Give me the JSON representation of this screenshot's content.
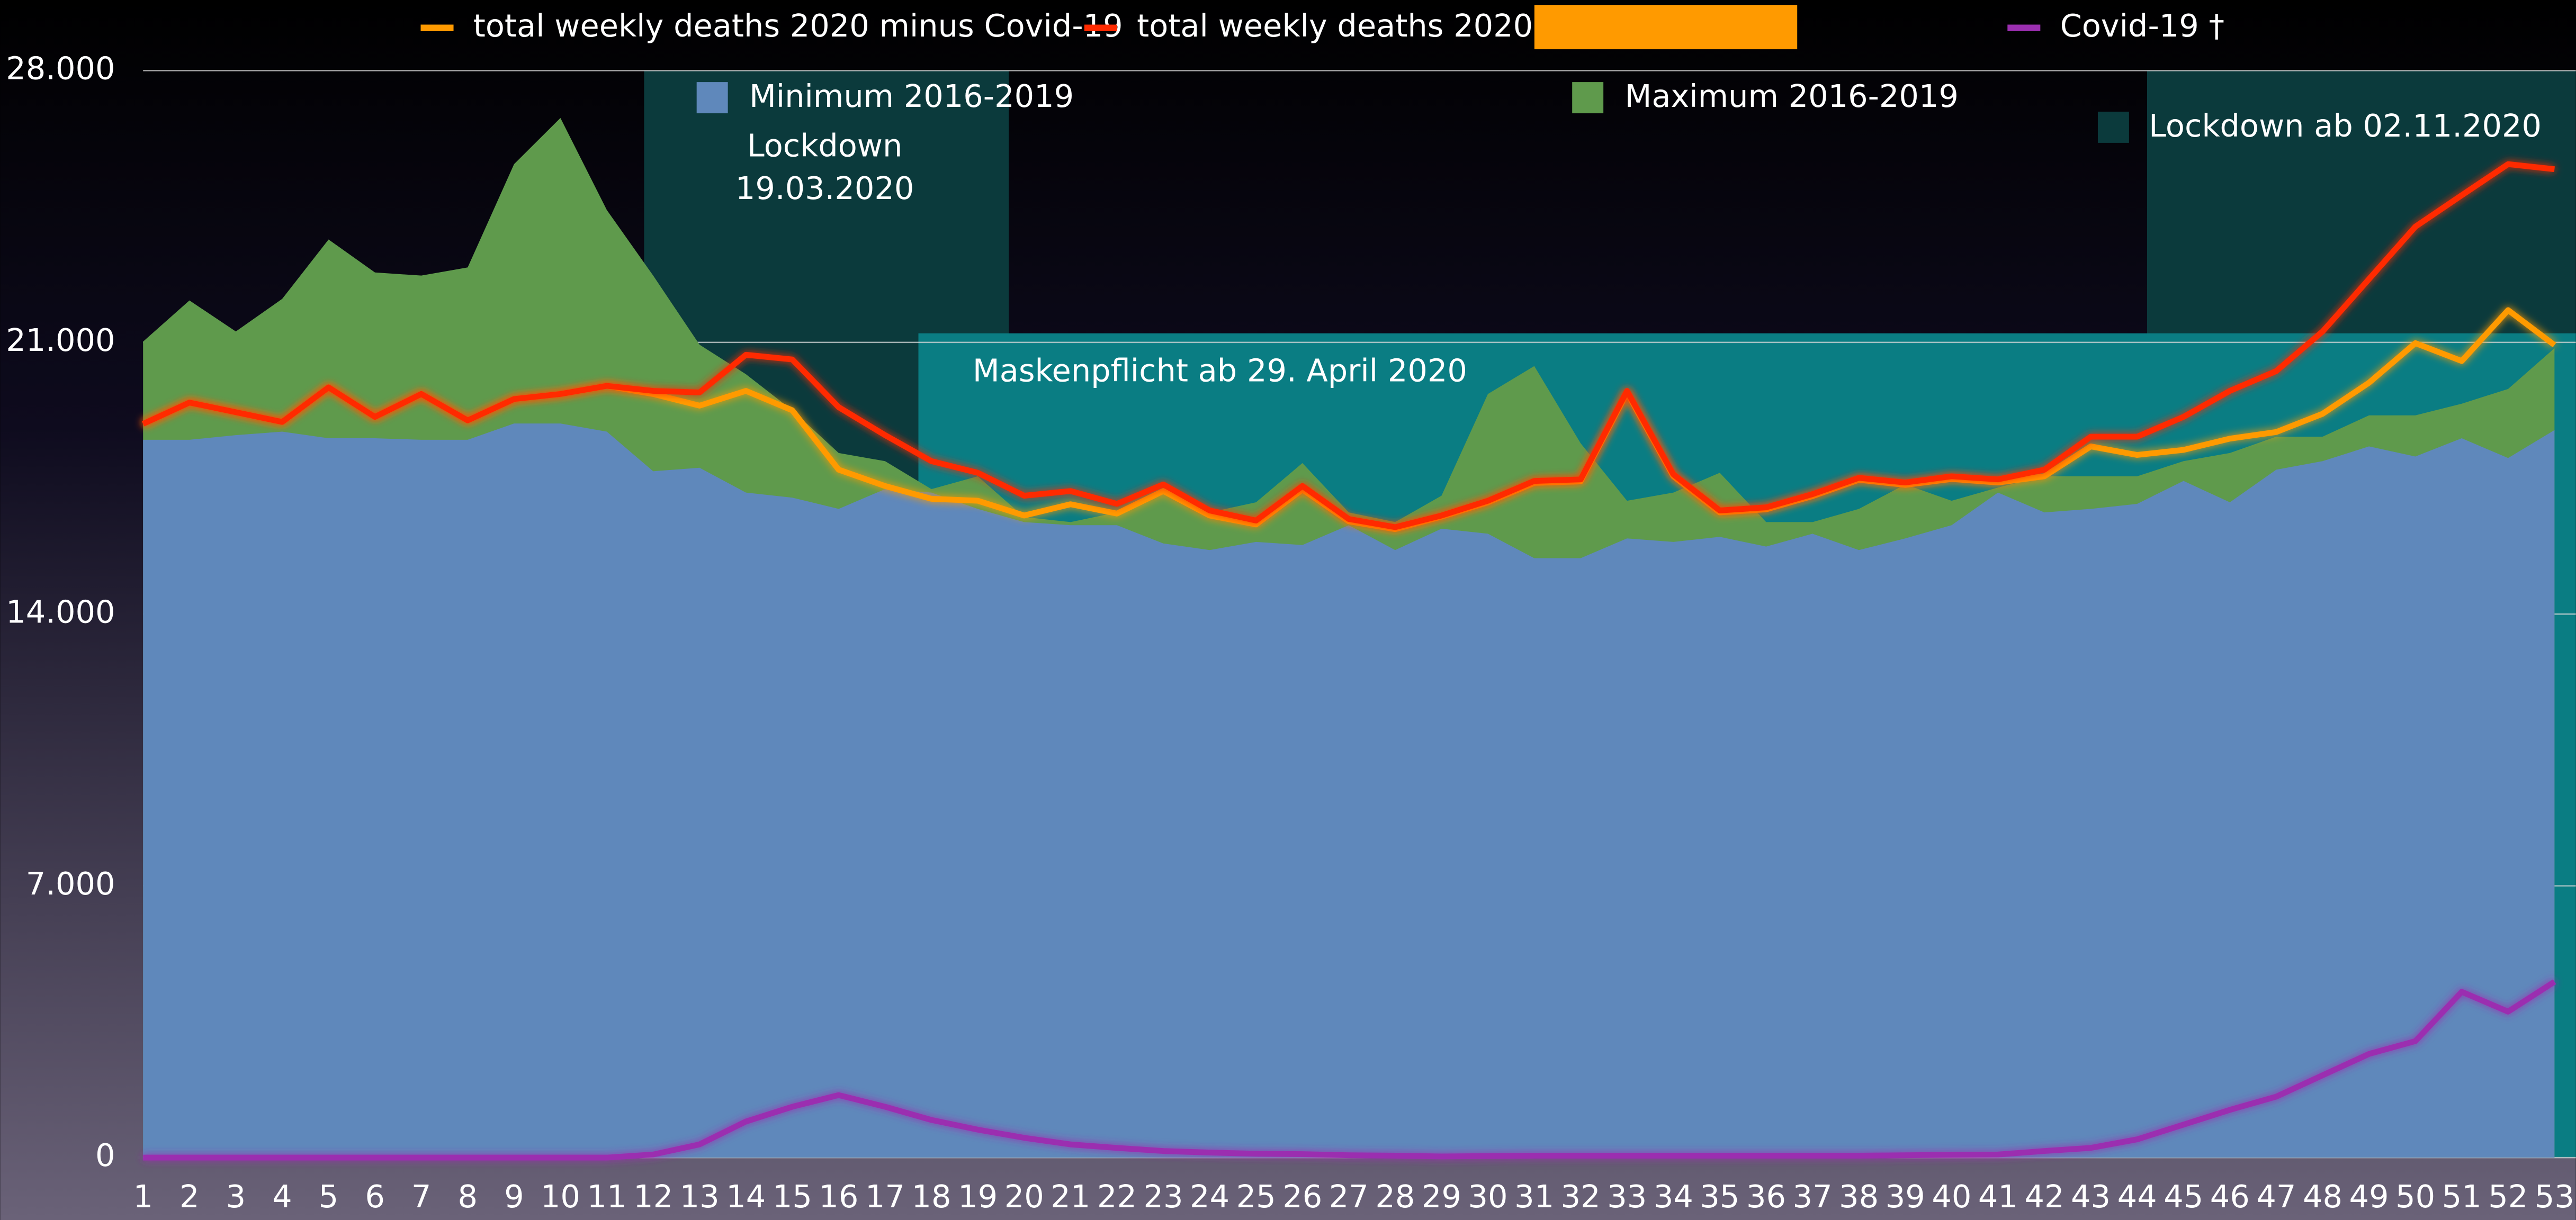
{
  "chart_data": {
    "type": "line",
    "categories": [
      "1",
      "2",
      "3",
      "4",
      "5",
      "6",
      "7",
      "8",
      "9",
      "10",
      "11",
      "12",
      "13",
      "14",
      "15",
      "16",
      "17",
      "18",
      "19",
      "20",
      "21",
      "22",
      "23",
      "24",
      "25",
      "26",
      "27",
      "28",
      "29",
      "30",
      "31",
      "32",
      "33",
      "34",
      "35",
      "36",
      "37",
      "38",
      "39",
      "40",
      "41",
      "42",
      "43",
      "44",
      "45",
      "46",
      "47",
      "48",
      "49",
      "50",
      "51",
      "52",
      "53"
    ],
    "ylim": [
      0,
      28000
    ],
    "yticks": [
      0,
      {
        "value": 7000,
        "label": "7.000"
      },
      {
        "value": 14000,
        "label": "14.000"
      },
      {
        "value": 21000,
        "label": "21.000"
      },
      {
        "value": 28000,
        "label": "28.000"
      }
    ],
    "grid": true,
    "legend": "top",
    "series": [
      {
        "name": "Maximum 2016-2019",
        "type": "area",
        "color": "#5f9a4c",
        "values": [
          21020,
          22080,
          21280,
          22120,
          23650,
          22800,
          22720,
          22930,
          25590,
          26780,
          24410,
          22720,
          20940,
          20180,
          19250,
          18150,
          17940,
          17220,
          17550,
          16500,
          16370,
          16620,
          17130,
          16620,
          16880,
          17890,
          16620,
          16370,
          17050,
          19670,
          20390,
          18400,
          16920,
          17130,
          17640,
          16370,
          16370,
          16710,
          17340,
          16920,
          17260,
          17550,
          17550,
          17550,
          17940,
          18150,
          18570,
          18570,
          19120,
          19120,
          19420,
          19800,
          20850
        ]
      },
      {
        "name": "Minimum 2016-2019",
        "type": "area",
        "color": "#5f88bb",
        "values": [
          18490,
          18490,
          18610,
          18700,
          18530,
          18530,
          18490,
          18490,
          18910,
          18910,
          18700,
          17680,
          17770,
          17130,
          17000,
          16710,
          17220,
          17130,
          16710,
          16370,
          16290,
          16290,
          15820,
          15650,
          15860,
          15780,
          16290,
          15650,
          16200,
          16070,
          15440,
          15440,
          15950,
          15860,
          15990,
          15740,
          16070,
          15650,
          15950,
          16290,
          17130,
          16620,
          16710,
          16840,
          17430,
          16880,
          17720,
          17940,
          18320,
          18060,
          18530,
          18020,
          18740
        ]
      },
      {
        "name": "total weekly deaths 2020 minus Covid-19",
        "type": "line",
        "color": "#ff9a00",
        "values": [
          18900,
          19450,
          19200,
          18950,
          19840,
          19080,
          19670,
          18990,
          19540,
          19670,
          19880,
          19670,
          19370,
          19750,
          19250,
          17720,
          17300,
          16970,
          16920,
          16540,
          16830,
          16590,
          17170,
          16540,
          16310,
          17210,
          16390,
          16190,
          16510,
          16880,
          17380,
          17420,
          19700,
          17550,
          16620,
          16700,
          17040,
          17460,
          17330,
          17480,
          17390,
          17550,
          18320,
          18100,
          18230,
          18520,
          18690,
          19160,
          19960,
          20980,
          20520,
          21830,
          20930
        ]
      },
      {
        "name": "total weekly deaths 2020",
        "type": "line",
        "color": "#ff2a00",
        "values": [
          18900,
          19450,
          19200,
          18950,
          19840,
          19080,
          19670,
          18990,
          19540,
          19670,
          19880,
          19750,
          19710,
          20680,
          20560,
          19330,
          18610,
          17940,
          17640,
          17050,
          17170,
          16840,
          17340,
          16670,
          16410,
          17300,
          16450,
          16240,
          16540,
          16920,
          17430,
          17470,
          19750,
          17600,
          16670,
          16750,
          17090,
          17510,
          17390,
          17550,
          17470,
          17720,
          18570,
          18570,
          19080,
          19750,
          20260,
          21280,
          22630,
          23980,
          24790,
          25590,
          25460
        ]
      },
      {
        "name": "Covid-19 †",
        "type": "line",
        "color": "#9b2fb0",
        "values": [
          0,
          0,
          0,
          0,
          0,
          0,
          0,
          0,
          0,
          0,
          0,
          80,
          340,
          930,
          1310,
          1610,
          1310,
          970,
          720,
          510,
          340,
          250,
          170,
          130,
          100,
          90,
          60,
          50,
          30,
          40,
          50,
          50,
          50,
          50,
          50,
          50,
          50,
          50,
          60,
          70,
          80,
          170,
          250,
          470,
          850,
          1230,
          1570,
          2120,
          2670,
          3000,
          4270,
          3760,
          4530
        ]
      }
    ],
    "annotations": [
      {
        "lines": [
          "Lockdown",
          "19.03.2020"
        ]
      },
      {
        "text": "Maskenpflicht ab 29. April 2020"
      },
      {
        "text": "Lockdown ab 02.11.2020"
      }
    ]
  }
}
